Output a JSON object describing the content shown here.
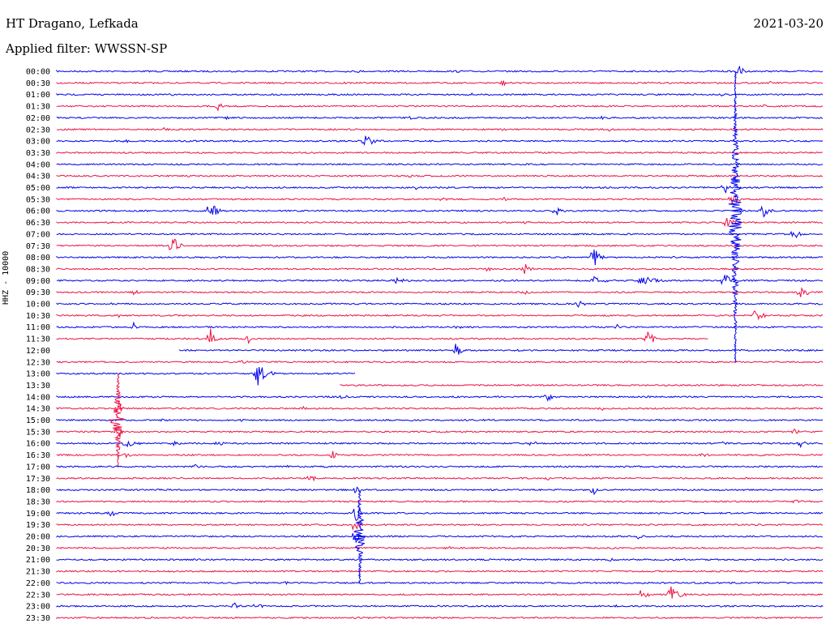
{
  "chart_data": {
    "type": "line",
    "title": "HT Dragano, Lefkada",
    "subtitle": "Applied filter: WWSSN-SP",
    "date": "2021-03-20",
    "ylabel": "HHZ - 10000",
    "row_interval_minutes": 30,
    "series_colors": [
      "#0000ee",
      "#ee1144"
    ],
    "rows": [
      {
        "label": "00:00",
        "color": "blue",
        "x_end": 1.0,
        "events": [
          [
            0.39,
            0.04,
            2
          ],
          [
            0.52,
            0.03,
            2
          ],
          [
            0.89,
            0.02,
            8
          ]
        ]
      },
      {
        "label": "00:30",
        "color": "red",
        "x_end": 1.0,
        "events": [
          [
            0.37,
            0.03,
            3
          ],
          [
            0.58,
            0.02,
            6
          ],
          [
            0.93,
            0.03,
            2
          ]
        ]
      },
      {
        "label": "01:00",
        "color": "blue",
        "x_end": 1.0,
        "events": [
          [
            0.15,
            0.01,
            3
          ],
          [
            0.54,
            0.03,
            2
          ],
          [
            0.87,
            0.01,
            5
          ]
        ]
      },
      {
        "label": "01:30",
        "color": "red",
        "x_end": 1.0,
        "events": [
          [
            0.21,
            0.02,
            6
          ],
          [
            0.92,
            0.02,
            3
          ]
        ]
      },
      {
        "label": "02:00",
        "color": "blue",
        "x_end": 1.0,
        "events": [
          [
            0.22,
            0.02,
            3
          ],
          [
            0.46,
            0.05,
            2
          ],
          [
            0.71,
            0.06,
            2
          ]
        ]
      },
      {
        "label": "02:30",
        "color": "red",
        "x_end": 1.0,
        "events": [
          [
            0.14,
            0.02,
            3
          ],
          [
            0.58,
            0.02,
            3
          ],
          [
            0.72,
            0.02,
            3
          ],
          [
            0.92,
            0.01,
            4
          ]
        ]
      },
      {
        "label": "03:00",
        "color": "blue",
        "x_end": 1.0,
        "events": [
          [
            0.09,
            0.01,
            3
          ],
          [
            0.4,
            0.04,
            8
          ]
        ]
      },
      {
        "label": "03:30",
        "color": "red",
        "x_end": 1.0,
        "events": []
      },
      {
        "label": "04:00",
        "color": "blue",
        "x_end": 1.0,
        "events": [
          [
            0.29,
            0.02,
            2
          ]
        ]
      },
      {
        "label": "04:30",
        "color": "red",
        "x_end": 1.0,
        "events": [
          [
            0.17,
            0.02,
            2
          ],
          [
            0.46,
            0.01,
            4
          ]
        ]
      },
      {
        "label": "05:00",
        "color": "blue",
        "x_end": 1.0,
        "events": [
          [
            0.47,
            0.01,
            6
          ],
          [
            0.87,
            0.02,
            10
          ]
        ]
      },
      {
        "label": "05:30",
        "color": "red",
        "x_end": 1.0,
        "events": [
          [
            0.5,
            0.06,
            2
          ],
          [
            0.58,
            0.03,
            3
          ],
          [
            0.88,
            0.02,
            10
          ]
        ]
      },
      {
        "label": "06:00",
        "color": "blue",
        "x_end": 1.0,
        "events": [
          [
            0.2,
            0.02,
            16
          ],
          [
            0.65,
            0.02,
            8
          ],
          [
            0.92,
            0.02,
            14
          ]
        ]
      },
      {
        "label": "06:30",
        "color": "red",
        "x_end": 1.0,
        "events": [
          [
            0.61,
            0.02,
            3
          ],
          [
            0.87,
            0.03,
            10
          ]
        ]
      },
      {
        "label": "07:00",
        "color": "blue",
        "x_end": 1.0,
        "events": [
          [
            0.67,
            0.02,
            2
          ],
          [
            0.96,
            0.02,
            10
          ]
        ]
      },
      {
        "label": "07:30",
        "color": "red",
        "x_end": 1.0,
        "events": [
          [
            0.15,
            0.02,
            16
          ],
          [
            0.11,
            0.03,
            3
          ]
        ]
      },
      {
        "label": "08:00",
        "color": "blue",
        "x_end": 1.0,
        "events": [
          [
            0.7,
            0.02,
            14
          ],
          [
            0.8,
            0.05,
            2
          ]
        ]
      },
      {
        "label": "08:30",
        "color": "red",
        "x_end": 1.0,
        "events": [
          [
            0.56,
            0.05,
            3
          ],
          [
            0.61,
            0.02,
            8
          ]
        ]
      },
      {
        "label": "09:00",
        "color": "blue",
        "x_end": 1.0,
        "events": [
          [
            0.44,
            0.05,
            4
          ],
          [
            0.7,
            0.04,
            6
          ],
          [
            0.76,
            0.08,
            6
          ],
          [
            0.87,
            0.02,
            12
          ],
          [
            0.97,
            0.02,
            6
          ]
        ]
      },
      {
        "label": "09:30",
        "color": "red",
        "x_end": 1.0,
        "events": [
          [
            0.1,
            0.02,
            4
          ],
          [
            0.61,
            0.02,
            4
          ],
          [
            0.97,
            0.03,
            7
          ]
        ]
      },
      {
        "label": "10:00",
        "color": "blue",
        "x_end": 1.0,
        "events": [
          [
            0.07,
            0.01,
            4
          ],
          [
            0.68,
            0.02,
            6
          ]
        ]
      },
      {
        "label": "10:30",
        "color": "red",
        "x_end": 1.0,
        "events": [
          [
            0.08,
            0.02,
            3
          ],
          [
            0.91,
            0.02,
            16
          ]
        ]
      },
      {
        "label": "11:00",
        "color": "blue",
        "x_end": 1.0,
        "events": [
          [
            0.1,
            0.01,
            6
          ],
          [
            0.52,
            0.03,
            3
          ],
          [
            0.73,
            0.01,
            5
          ]
        ]
      },
      {
        "label": "11:30",
        "color": "red",
        "x_end": 0.85,
        "events": [
          [
            0.2,
            0.02,
            14
          ],
          [
            0.25,
            0.01,
            6
          ],
          [
            0.55,
            0.02,
            3
          ],
          [
            0.77,
            0.03,
            10
          ]
        ]
      },
      {
        "label": "12:00",
        "color": "blue",
        "x_start": 0.16,
        "x_end": 1.0,
        "events": [
          [
            0.52,
            0.02,
            10
          ],
          [
            0.6,
            0.02,
            2
          ]
        ]
      },
      {
        "label": "12:30",
        "color": "red",
        "x_end": 1.0,
        "events": [
          [
            0.24,
            0.02,
            4
          ]
        ]
      },
      {
        "label": "13:00",
        "color": "blue",
        "x_end": 0.39,
        "events": [
          [
            0.26,
            0.03,
            20
          ]
        ]
      },
      {
        "label": "13:30",
        "color": "red",
        "x_start": 0.37,
        "x_end": 1.0,
        "events": []
      },
      {
        "label": "14:00",
        "color": "blue",
        "x_end": 1.0,
        "events": [
          [
            0.37,
            0.03,
            4
          ],
          [
            0.64,
            0.02,
            6
          ]
        ]
      },
      {
        "label": "14:30",
        "color": "red",
        "x_end": 1.0,
        "events": [
          [
            0.08,
            0.01,
            12
          ],
          [
            0.32,
            0.03,
            3
          ],
          [
            0.71,
            0.02,
            3
          ]
        ]
      },
      {
        "label": "15:00",
        "color": "blue",
        "x_end": 1.0,
        "events": [
          [
            0.14,
            0.01,
            4
          ],
          [
            0.24,
            0.01,
            3
          ],
          [
            0.56,
            0.01,
            4
          ]
        ]
      },
      {
        "label": "15:30",
        "color": "red",
        "x_end": 1.0,
        "events": [
          [
            0.08,
            0.01,
            18
          ],
          [
            0.96,
            0.02,
            5
          ]
        ]
      },
      {
        "label": "16:00",
        "color": "blue",
        "x_end": 1.0,
        "events": [
          [
            0.09,
            0.04,
            6
          ],
          [
            0.15,
            0.03,
            5
          ],
          [
            0.21,
            0.02,
            5
          ],
          [
            0.62,
            0.01,
            8
          ],
          [
            0.87,
            0.01,
            5
          ],
          [
            0.97,
            0.02,
            5
          ]
        ]
      },
      {
        "label": "16:30",
        "color": "red",
        "x_end": 1.0,
        "events": [
          [
            0.09,
            0.02,
            4
          ],
          [
            0.36,
            0.01,
            10
          ],
          [
            0.84,
            0.03,
            3
          ],
          [
            0.92,
            0.01,
            5
          ]
        ]
      },
      {
        "label": "17:00",
        "color": "blue",
        "x_end": 1.0,
        "events": [
          [
            0.18,
            0.02,
            3
          ],
          [
            0.3,
            0.02,
            2
          ],
          [
            0.66,
            0.01,
            3
          ]
        ]
      },
      {
        "label": "17:30",
        "color": "red",
        "x_end": 1.0,
        "events": [
          [
            0.33,
            0.02,
            6
          ],
          [
            0.64,
            0.01,
            4
          ]
        ]
      },
      {
        "label": "18:00",
        "color": "blue",
        "x_end": 1.0,
        "events": [
          [
            0.39,
            0.01,
            10
          ],
          [
            0.7,
            0.01,
            10
          ]
        ]
      },
      {
        "label": "18:30",
        "color": "red",
        "x_end": 1.0,
        "events": [
          [
            0.96,
            0.04,
            3
          ]
        ]
      },
      {
        "label": "19:00",
        "color": "blue",
        "x_end": 1.0,
        "events": [
          [
            0.39,
            0.01,
            22
          ],
          [
            0.07,
            0.04,
            4
          ]
        ]
      },
      {
        "label": "19:30",
        "color": "red",
        "x_end": 1.0,
        "events": [
          [
            0.39,
            0.01,
            14
          ]
        ]
      },
      {
        "label": "20:00",
        "color": "blue",
        "x_end": 1.0,
        "events": [
          [
            0.39,
            0.01,
            12
          ],
          [
            0.76,
            0.01,
            8
          ]
        ]
      },
      {
        "label": "20:30",
        "color": "red",
        "x_end": 1.0,
        "events": [
          [
            0.51,
            0.01,
            4
          ]
        ]
      },
      {
        "label": "21:00",
        "color": "blue",
        "x_end": 1.0,
        "events": [
          [
            0.72,
            0.02,
            3
          ]
        ]
      },
      {
        "label": "21:30",
        "color": "red",
        "x_end": 1.0,
        "events": [
          [
            0.15,
            0.01,
            3
          ]
        ]
      },
      {
        "label": "22:00",
        "color": "blue",
        "x_end": 1.0,
        "events": [
          [
            0.3,
            0.01,
            4
          ],
          [
            0.69,
            0.01,
            3
          ]
        ]
      },
      {
        "label": "22:30",
        "color": "red",
        "x_end": 1.0,
        "events": [
          [
            0.76,
            0.02,
            14
          ],
          [
            0.8,
            0.03,
            12
          ]
        ]
      },
      {
        "label": "23:00",
        "color": "blue",
        "x_end": 1.0,
        "events": [
          [
            0.23,
            0.02,
            6
          ],
          [
            0.26,
            0.02,
            5
          ],
          [
            0.73,
            0.01,
            4
          ]
        ]
      },
      {
        "label": "23:30",
        "color": "red",
        "x_end": 1.0,
        "events": [
          [
            0.39,
            0.01,
            3
          ]
        ]
      }
    ],
    "large_events": [
      {
        "color": "blue",
        "x": 0.885,
        "from_row": 0,
        "to_row": 25
      },
      {
        "color": "blue",
        "x": 0.395,
        "from_row": 36,
        "to_row": 44
      },
      {
        "color": "red",
        "x": 0.08,
        "from_row": 26,
        "to_row": 34
      }
    ]
  }
}
